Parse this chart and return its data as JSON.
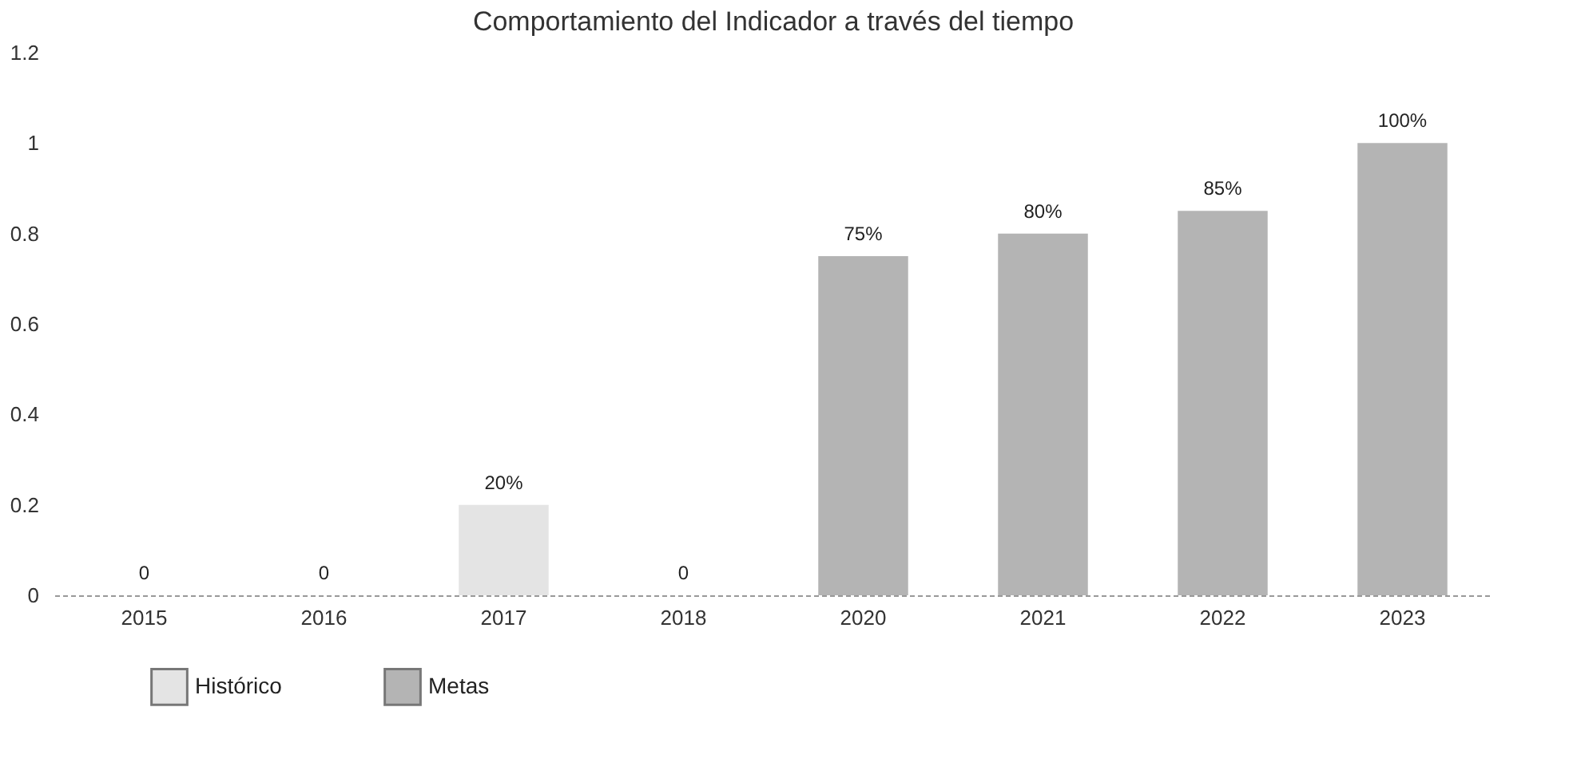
{
  "chart_data": {
    "type": "bar",
    "title": "Comportamiento del Indicador a través del tiempo",
    "categories": [
      "2015",
      "2016",
      "2017",
      "2018",
      "2020",
      "2021",
      "2022",
      "2023"
    ],
    "series": [
      {
        "name": "Histórico",
        "color": "#e4e4e4",
        "values": [
          0,
          0,
          0.2,
          0,
          null,
          null,
          null,
          null
        ],
        "value_labels": [
          "0",
          "0",
          "20%",
          "0",
          null,
          null,
          null,
          null
        ]
      },
      {
        "name": "Metas",
        "color": "#b4b4b4",
        "values": [
          null,
          null,
          null,
          null,
          0.75,
          0.8,
          0.85,
          1
        ],
        "value_labels": [
          null,
          null,
          null,
          null,
          "75%",
          "80%",
          "85%",
          "100%"
        ]
      }
    ],
    "ylim": [
      0,
      1.2
    ],
    "yticks": [
      0,
      0.2,
      0.4,
      0.6,
      0.8,
      1,
      1.2
    ],
    "grid": false,
    "legend": "bottom left"
  }
}
